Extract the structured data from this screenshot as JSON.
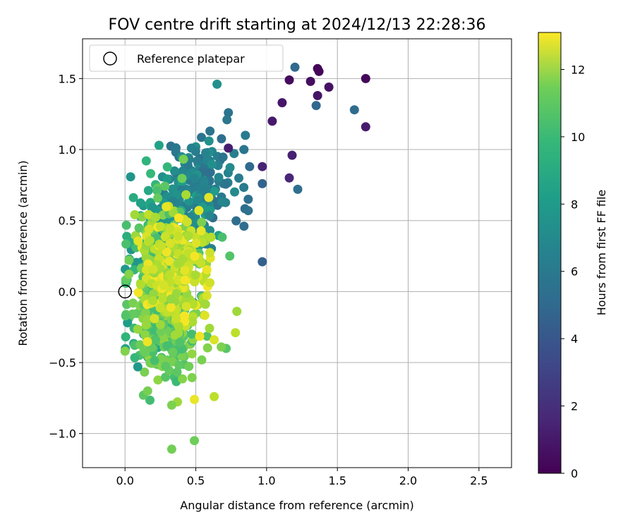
{
  "chart_data": {
    "type": "scatter",
    "title": "FOV centre drift starting at 2024/12/13 22:28:36",
    "xlabel": "Angular distance from reference (arcmin)",
    "ylabel": "Rotation from reference (arcmin)",
    "xlim": [
      -0.3,
      2.73
    ],
    "ylim": [
      -1.24,
      1.78
    ],
    "xticks": [
      0.0,
      0.5,
      1.0,
      1.5,
      2.0,
      2.5
    ],
    "xtick_labels": [
      "0.0",
      "0.5",
      "1.0",
      "1.5",
      "2.0",
      "2.5"
    ],
    "yticks": [
      -1.0,
      -0.5,
      0.0,
      0.5,
      1.0,
      1.5
    ],
    "ytick_labels": [
      "−1.0",
      "−0.5",
      "0.0",
      "0.5",
      "1.0",
      "1.5"
    ],
    "grid": true,
    "legend": {
      "placement": "upper-left",
      "entries": [
        {
          "label": "Reference platepar",
          "marker": "open-circle"
        }
      ]
    },
    "reference_point": {
      "x": 0.0,
      "y": 0.0
    },
    "colorbar": {
      "label": "Hours from first FF file",
      "colormap": "viridis",
      "range": [
        0,
        13.1
      ],
      "ticks": [
        0,
        2,
        4,
        6,
        8,
        10,
        12
      ],
      "tick_labels": [
        "0",
        "2",
        "4",
        "6",
        "8",
        "10",
        "12"
      ]
    },
    "outlier_points": [
      {
        "x": 1.36,
        "y": 1.57,
        "c": 0.1
      },
      {
        "x": 1.37,
        "y": 1.55,
        "c": 0.2
      },
      {
        "x": 1.7,
        "y": 1.5,
        "c": 0.3
      },
      {
        "x": 1.16,
        "y": 1.49,
        "c": 0.4
      },
      {
        "x": 1.31,
        "y": 1.48,
        "c": 0.5
      },
      {
        "x": 1.44,
        "y": 1.44,
        "c": 0.6
      },
      {
        "x": 1.36,
        "y": 1.38,
        "c": 0.7
      },
      {
        "x": 1.11,
        "y": 1.33,
        "c": 0.8
      },
      {
        "x": 1.04,
        "y": 1.2,
        "c": 0.9
      },
      {
        "x": 1.7,
        "y": 1.16,
        "c": 1.0
      },
      {
        "x": 0.73,
        "y": 1.01,
        "c": 1.1
      },
      {
        "x": 1.18,
        "y": 0.96,
        "c": 1.2
      },
      {
        "x": 0.97,
        "y": 0.88,
        "c": 1.3
      },
      {
        "x": 1.16,
        "y": 0.8,
        "c": 1.4
      },
      {
        "x": 1.2,
        "y": 1.58,
        "c": 4.5
      },
      {
        "x": 1.35,
        "y": 1.31,
        "c": 4.3
      },
      {
        "x": 1.62,
        "y": 1.28,
        "c": 4.6
      },
      {
        "x": 0.73,
        "y": 1.26,
        "c": 5.0
      },
      {
        "x": 0.72,
        "y": 1.21,
        "c": 5.2
      },
      {
        "x": 0.6,
        "y": 1.13,
        "c": 5.0
      },
      {
        "x": 0.85,
        "y": 1.1,
        "c": 5.4
      },
      {
        "x": 0.84,
        "y": 1.0,
        "c": 5.1
      },
      {
        "x": 0.88,
        "y": 0.88,
        "c": 4.5
      },
      {
        "x": 0.97,
        "y": 0.76,
        "c": 4.2
      },
      {
        "x": 1.22,
        "y": 0.72,
        "c": 4.8
      },
      {
        "x": 0.87,
        "y": 0.65,
        "c": 4.8
      },
      {
        "x": 0.87,
        "y": 0.57,
        "c": 4.9
      },
      {
        "x": 0.84,
        "y": 0.46,
        "c": 4.7
      },
      {
        "x": 0.97,
        "y": 0.21,
        "c": 4.0
      },
      {
        "x": 0.65,
        "y": 1.46,
        "c": 6.5
      },
      {
        "x": 0.24,
        "y": 1.03,
        "c": 7.5
      },
      {
        "x": 0.15,
        "y": 0.92,
        "c": 8.5
      },
      {
        "x": 0.74,
        "y": 0.25,
        "c": 9.5
      },
      {
        "x": 0.33,
        "y": -0.8,
        "c": 10.5
      },
      {
        "x": 0.33,
        "y": -1.11,
        "c": 10.3
      },
      {
        "x": 0.49,
        "y": -1.05,
        "c": 10.2
      },
      {
        "x": 0.63,
        "y": -0.74,
        "c": 11.8
      },
      {
        "x": 0.49,
        "y": -0.76,
        "c": 12.7
      },
      {
        "x": 0.13,
        "y": -0.73,
        "c": 9.8
      },
      {
        "x": 0.16,
        "y": -0.7,
        "c": 10.4
      },
      {
        "x": 0.0,
        "y": -0.42,
        "c": 10.6
      },
      {
        "x": 0.09,
        "y": -0.53,
        "c": 7.0
      },
      {
        "x": 0.68,
        "y": -0.39,
        "c": 10.5
      },
      {
        "x": 0.78,
        "y": -0.29,
        "c": 11.8
      },
      {
        "x": 0.63,
        "y": -0.34,
        "c": 12.4
      },
      {
        "x": 0.79,
        "y": -0.14,
        "c": 11.2
      }
    ],
    "cluster_regions": [
      {
        "cx": 0.55,
        "cy": 0.78,
        "sx": 0.1,
        "sy": 0.13,
        "n": 130,
        "c_min": 4.5,
        "c_max": 6.6
      },
      {
        "cx": 0.4,
        "cy": 0.55,
        "sx": 0.14,
        "sy": 0.16,
        "n": 110,
        "c_min": 5.5,
        "c_max": 7.5
      },
      {
        "cx": 0.22,
        "cy": 0.3,
        "sx": 0.1,
        "sy": 0.22,
        "n": 120,
        "c_min": 6.3,
        "c_max": 8.8
      },
      {
        "cx": 0.25,
        "cy": -0.05,
        "sx": 0.1,
        "sy": 0.22,
        "n": 140,
        "c_min": 7.0,
        "c_max": 10.0
      },
      {
        "cx": 0.3,
        "cy": 0.05,
        "sx": 0.13,
        "sy": 0.28,
        "n": 240,
        "c_min": 8.8,
        "c_max": 11.4
      },
      {
        "cx": 0.3,
        "cy": -0.38,
        "sx": 0.1,
        "sy": 0.12,
        "n": 80,
        "c_min": 9.0,
        "c_max": 11.0
      },
      {
        "cx": 0.36,
        "cy": 0.12,
        "sx": 0.12,
        "sy": 0.22,
        "n": 210,
        "c_min": 11.0,
        "c_max": 13.0
      }
    ]
  }
}
